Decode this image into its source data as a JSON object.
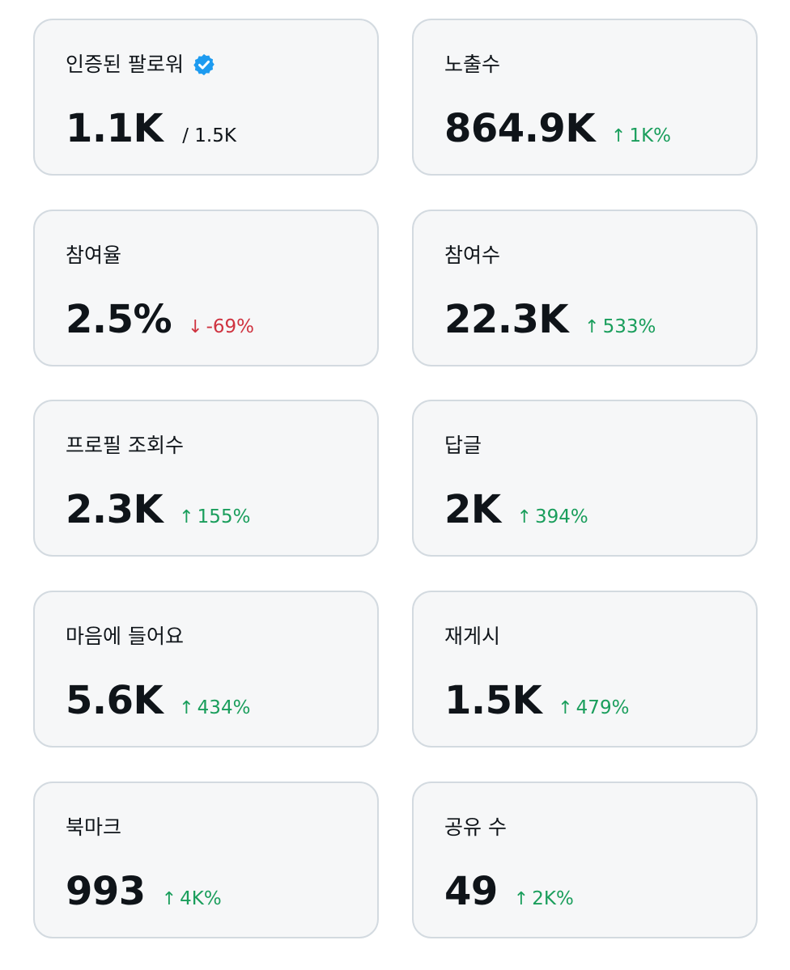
{
  "cards": [
    {
      "label": "인증된 팔로워",
      "value": "1.1K",
      "sub": "/ 1.5K",
      "verified_icon": "verified-badge-icon",
      "badge_color": "#1d9bf0"
    },
    {
      "label": "노출수",
      "value": "864.9K",
      "change": "1K%",
      "direction": "up",
      "arrow": "↑"
    },
    {
      "label": "참여율",
      "value": "2.5%",
      "change": "-69%",
      "direction": "down",
      "arrow": "↓"
    },
    {
      "label": "참여수",
      "value": "22.3K",
      "change": "533%",
      "direction": "up",
      "arrow": "↑"
    },
    {
      "label": "프로필 조회수",
      "value": "2.3K",
      "change": "155%",
      "direction": "up",
      "arrow": "↑"
    },
    {
      "label": "답글",
      "value": "2K",
      "change": "394%",
      "direction": "up",
      "arrow": "↑"
    },
    {
      "label": "마음에 들어요",
      "value": "5.6K",
      "change": "434%",
      "direction": "up",
      "arrow": "↑"
    },
    {
      "label": "재게시",
      "value": "1.5K",
      "change": "479%",
      "direction": "up",
      "arrow": "↑"
    },
    {
      "label": "북마크",
      "value": "993",
      "change": "4K%",
      "direction": "up",
      "arrow": "↑"
    },
    {
      "label": "공유 수",
      "value": "49",
      "change": "2K%",
      "direction": "up",
      "arrow": "↑"
    }
  ],
  "colors": {
    "up": "#1a9e5c",
    "down": "#cf3340",
    "card_bg": "#f6f7f8",
    "card_border": "#d3dae0"
  }
}
